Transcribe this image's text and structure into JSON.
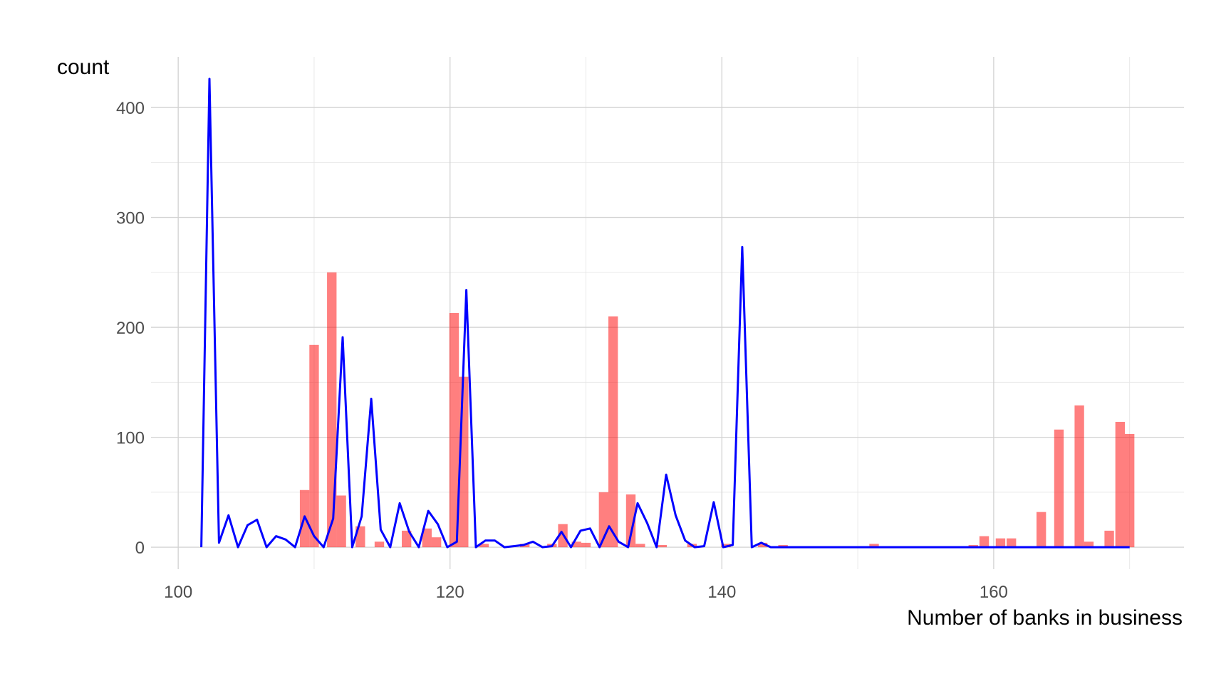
{
  "chart_data": {
    "type": "bar",
    "title": "",
    "xlabel": "Number of banks in business",
    "ylabel": "count",
    "xlim": [
      98,
      174
    ],
    "ylim": [
      -20,
      446
    ],
    "x_ticks": [
      100,
      120,
      140,
      160
    ],
    "y_ticks": [
      0,
      100,
      200,
      300,
      400
    ],
    "grid": true,
    "legend": "none",
    "colors": {
      "bars": "#ff0000",
      "bars_opacity": 0.5,
      "line": "#0000ff"
    },
    "bar_width": 0.7,
    "bars": {
      "x": [
        109.3,
        110.0,
        111.3,
        112.0,
        113.4,
        114.8,
        116.8,
        118.3,
        119.0,
        120.3,
        121.0,
        122.5,
        125.5,
        127.5,
        128.3,
        129.3,
        130.0,
        131.3,
        132.0,
        133.3,
        134.0,
        135.6,
        137.8,
        140.3,
        143.0,
        144.5,
        151.2,
        158.5,
        159.3,
        160.5,
        161.3,
        163.5,
        164.8,
        166.3,
        167.0,
        168.5,
        169.3,
        170.0
      ],
      "y": [
        52,
        184,
        250,
        47,
        19,
        5,
        15,
        17,
        9,
        213,
        155,
        3,
        3,
        3,
        21,
        5,
        4,
        50,
        210,
        48,
        3,
        2,
        3,
        3,
        4,
        2,
        3,
        2,
        10,
        8,
        8,
        32,
        107,
        129,
        5,
        15,
        114,
        103
      ]
    },
    "line": {
      "x": [
        101.7,
        102.3,
        103.0,
        103.7,
        104.4,
        105.1,
        105.8,
        106.5,
        107.2,
        107.9,
        108.6,
        109.3,
        110.0,
        110.7,
        111.4,
        112.1,
        112.8,
        113.5,
        114.2,
        114.9,
        115.6,
        116.3,
        117.0,
        117.7,
        118.4,
        119.1,
        119.8,
        120.5,
        121.2,
        121.9,
        122.6,
        123.3,
        124.0,
        124.7,
        125.4,
        126.1,
        126.8,
        127.5,
        128.2,
        128.9,
        129.6,
        130.3,
        131.0,
        131.7,
        132.4,
        133.1,
        133.8,
        134.5,
        135.2,
        135.9,
        136.6,
        137.3,
        138.0,
        138.7,
        139.4,
        140.1,
        140.8,
        141.5,
        142.2,
        142.9,
        143.6,
        150.0,
        160.0,
        170.0
      ],
      "y": [
        0,
        426,
        4,
        29,
        0,
        20,
        25,
        0,
        10,
        7,
        0,
        28,
        10,
        0,
        26,
        191,
        0,
        28,
        135,
        16,
        0,
        40,
        14,
        0,
        33,
        21,
        0,
        5,
        234,
        0,
        6,
        6,
        0,
        1,
        2,
        5,
        0,
        1,
        14,
        0,
        15,
        17,
        0,
        19,
        5,
        0,
        40,
        22,
        0,
        66,
        29,
        6,
        0,
        1,
        41,
        0,
        2,
        273,
        0,
        4,
        0,
        0,
        0,
        0
      ]
    }
  }
}
